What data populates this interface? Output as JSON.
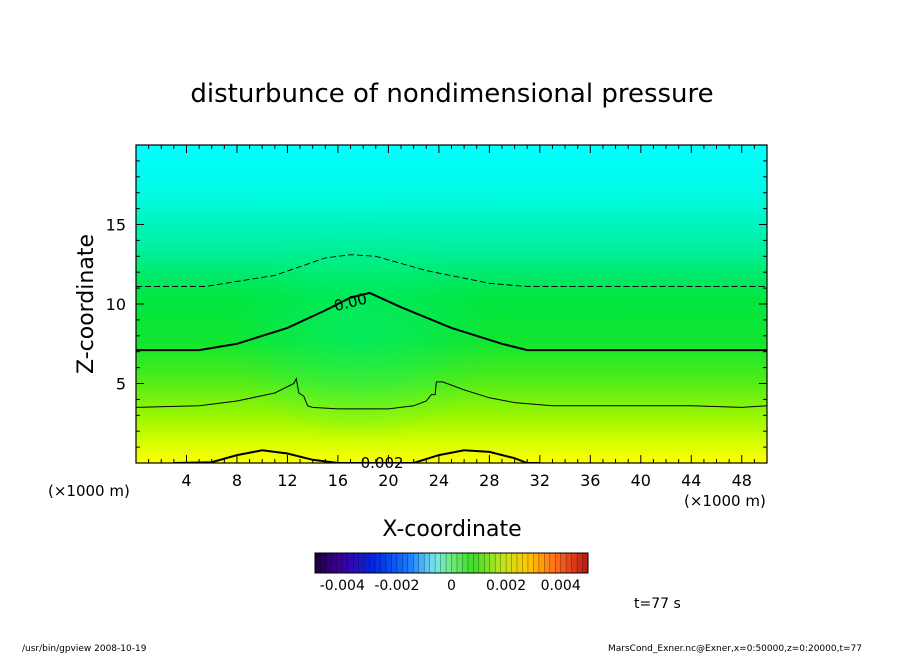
{
  "chart_data": {
    "type": "heatmap",
    "title": "disturbunce of nondimensional pressure",
    "xlabel": "X-coordinate",
    "ylabel": "Z-coordinate",
    "x_unit": "(×1000 m)",
    "x_unit_left": "(×1000 m)",
    "xlim": [
      0,
      50
    ],
    "ylim": [
      0,
      20
    ],
    "x_ticks": [
      "4",
      "8",
      "12",
      "16",
      "20",
      "24",
      "28",
      "32",
      "36",
      "40",
      "44",
      "48"
    ],
    "y_ticks": [
      "5",
      "10",
      "15"
    ],
    "x_tick_values": [
      4,
      8,
      12,
      16,
      20,
      24,
      28,
      32,
      36,
      40,
      44,
      48
    ],
    "y_tick_values": [
      5,
      10,
      15
    ],
    "colorbar": {
      "min": -0.005,
      "max": 0.005,
      "labels": [
        "-0.004",
        "-0.002",
        "0",
        "0.002",
        "0.004"
      ],
      "label_values": [
        -0.004,
        -0.002,
        0,
        0.002,
        0.004
      ]
    },
    "contour_labels": [
      {
        "text": "0.00",
        "x": 17.0,
        "z": 10.1
      },
      {
        "text": "0.002",
        "x": 19.5,
        "z": 0.0
      }
    ],
    "contours": [
      {
        "style": "dashed",
        "points": [
          [
            0,
            11.1
          ],
          [
            5.5,
            11.1
          ],
          [
            11,
            11.8
          ],
          [
            15,
            12.9
          ],
          [
            17,
            13.1
          ],
          [
            19,
            13.0
          ],
          [
            23,
            12.1
          ],
          [
            28,
            11.3
          ],
          [
            31,
            11.1
          ],
          [
            50,
            11.1
          ]
        ]
      },
      {
        "style": "solid-thick",
        "points": [
          [
            0,
            7.1
          ],
          [
            5,
            7.1
          ],
          [
            8,
            7.5
          ],
          [
            12,
            8.5
          ],
          [
            15,
            9.6
          ],
          [
            17,
            10.4
          ],
          [
            18.5,
            10.7
          ],
          [
            21,
            9.8
          ],
          [
            25,
            8.5
          ],
          [
            29,
            7.5
          ],
          [
            31,
            7.1
          ],
          [
            50,
            7.1
          ]
        ]
      },
      {
        "style": "solid-thin",
        "points": [
          [
            0,
            3.5
          ],
          [
            5,
            3.6
          ],
          [
            8,
            3.9
          ],
          [
            11,
            4.4
          ],
          [
            12.5,
            5.0
          ],
          [
            12.7,
            5.3
          ],
          [
            12.9,
            4.4
          ],
          [
            13.3,
            4.2
          ],
          [
            13.6,
            3.6
          ],
          [
            14,
            3.5
          ],
          [
            16,
            3.4
          ],
          [
            20,
            3.4
          ],
          [
            22,
            3.6
          ],
          [
            23,
            3.9
          ],
          [
            23.4,
            4.3
          ],
          [
            23.7,
            4.3
          ],
          [
            23.8,
            5.1
          ],
          [
            24.3,
            5.1
          ],
          [
            26,
            4.6
          ],
          [
            28,
            4.1
          ],
          [
            30,
            3.8
          ],
          [
            33,
            3.6
          ],
          [
            38,
            3.6
          ],
          [
            44,
            3.6
          ],
          [
            48,
            3.5
          ],
          [
            50,
            3.6
          ]
        ]
      },
      {
        "style": "solid-thick",
        "points": [
          [
            3,
            0
          ],
          [
            6,
            0.05
          ],
          [
            8,
            0.5
          ],
          [
            10,
            0.8
          ],
          [
            12,
            0.6
          ],
          [
            14,
            0.2
          ],
          [
            16,
            0
          ],
          [
            22,
            0
          ],
          [
            24,
            0.5
          ],
          [
            26,
            0.8
          ],
          [
            28,
            0.7
          ],
          [
            30,
            0.3
          ],
          [
            31,
            0
          ],
          [
            32,
            0
          ]
        ]
      }
    ]
  },
  "time_label": "t=77 s",
  "footer_left": "/usr/bin/gpview   2008-10-19",
  "footer_right": "MarsCond_Exner.nc@Exner,x=0:50000,z=0:20000,t=77",
  "colors": {
    "top_field": "#00ffff",
    "mid_field": "#00e62a",
    "low_field": "#c8ff00",
    "bottom_field": "#ffff00"
  }
}
